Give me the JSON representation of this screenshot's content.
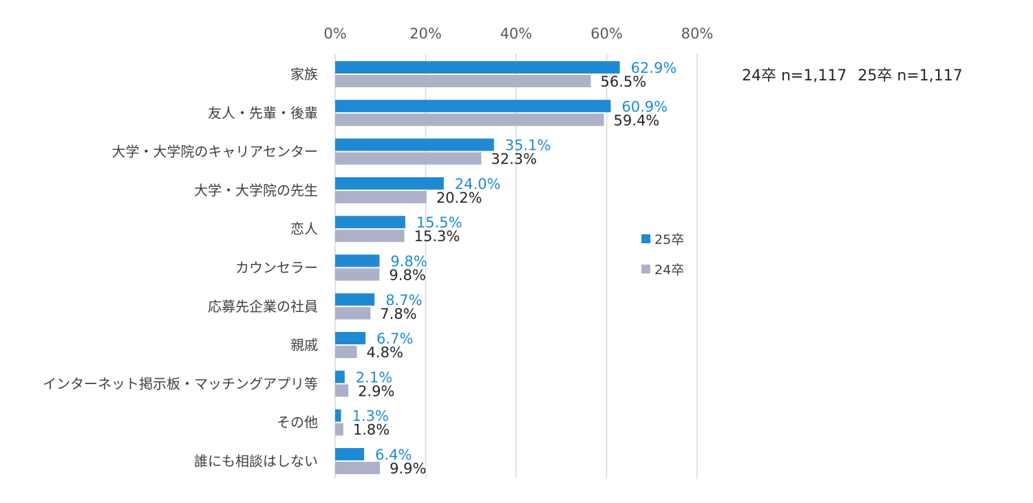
{
  "chart_data": {
    "type": "bar",
    "orientation": "horizontal",
    "categories": [
      "家族",
      "友人・先輩・後輩",
      "大学・大学院のキャリアセンター",
      "大学・大学院の先生",
      "恋人",
      "カウンセラー",
      "応募先企業の社員",
      "親戚",
      "インターネット掲示板・マッチングアプリ等",
      "その他",
      "誰にも相談はしない"
    ],
    "series": [
      {
        "name": "25卒",
        "color": "#1f8ad3",
        "label_color": "#1f8ad3",
        "values": [
          62.9,
          60.9,
          35.1,
          24.0,
          15.5,
          9.8,
          8.7,
          6.7,
          2.1,
          1.3,
          6.4
        ]
      },
      {
        "name": "24卒",
        "color": "#adb1c8",
        "label_color": "#262626",
        "values": [
          56.5,
          59.4,
          32.3,
          20.2,
          15.3,
          9.8,
          7.8,
          4.8,
          2.9,
          1.8,
          9.9
        ]
      }
    ],
    "xticks": [
      "0%",
      "20%",
      "40%",
      "60%",
      "80%"
    ],
    "xlim": [
      0,
      80
    ],
    "value_suffix": "%",
    "legend_position": "right",
    "gridlines": true
  },
  "notes": {
    "n24": "24卒 n=1,117",
    "n25": "25卒 n=1,117"
  }
}
